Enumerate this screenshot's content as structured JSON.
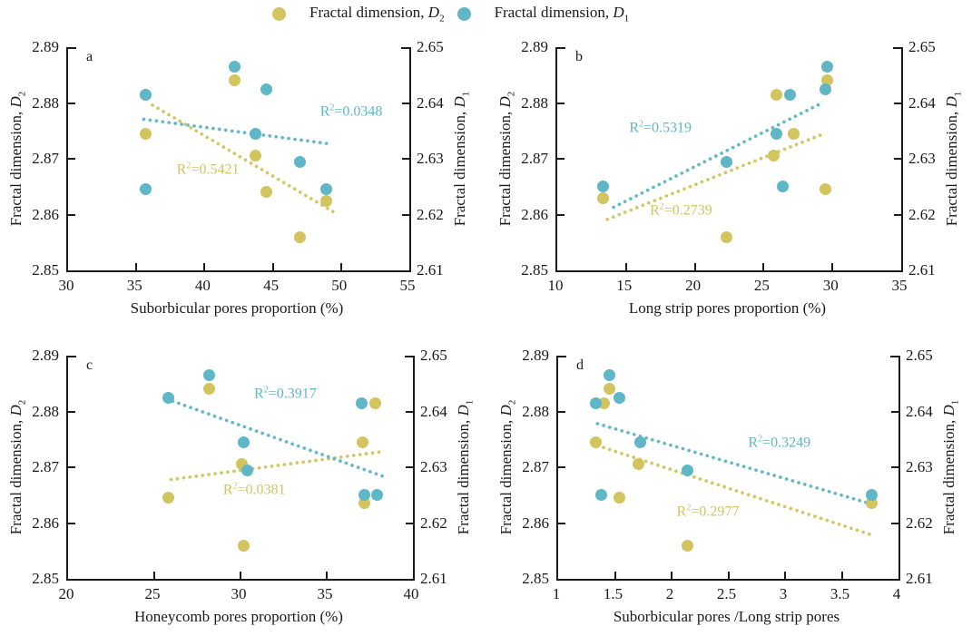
{
  "colors": {
    "d2": "#d2c45f",
    "d1": "#5fb6c6",
    "axis": "#1a1a1a"
  },
  "legend": {
    "items": [
      {
        "id": "d2",
        "prefix": "Fractal dimension, ",
        "symbol": "D",
        "subscript": "2",
        "color": "#d2c45f"
      },
      {
        "id": "d1",
        "prefix": "Fractal dimension, ",
        "symbol": "D",
        "subscript": "1",
        "color": "#5fb6c6"
      }
    ]
  },
  "chart_data": [
    {
      "panel": "a",
      "type": "scatter",
      "xlabel": "Suborbicular pores proportion (%)",
      "xlim": [
        30,
        55
      ],
      "xticks": [
        "30",
        "35",
        "40",
        "45",
        "50",
        "55"
      ],
      "ylim_left": [
        2.85,
        2.89
      ],
      "yticks_left": [
        "2.85",
        "2.86",
        "2.87",
        "2.88",
        "2.89"
      ],
      "ylim_right": [
        2.61,
        2.65
      ],
      "yticks_right": [
        "2.61",
        "2.62",
        "2.63",
        "2.64",
        "2.65"
      ],
      "ylabel_left": {
        "prefix": "Fractal dimension, ",
        "symbol": "D",
        "subscript": "2"
      },
      "ylabel_right": {
        "prefix": "Fractal dimension, ",
        "symbol": "D",
        "subscript": "1"
      },
      "series": [
        {
          "name": "Fractal dimension, D2",
          "axis": "left",
          "color": "#d2c45f",
          "points": [
            [
              35.7,
              2.8815
            ],
            [
              35.7,
              2.8745
            ],
            [
              42.2,
              2.884
            ],
            [
              43.7,
              2.8705
            ],
            [
              44.5,
              2.864
            ],
            [
              47.0,
              2.856
            ],
            [
              48.9,
              2.8625
            ]
          ],
          "trend": {
            "start": [
              36.0,
              2.88
            ],
            "end": [
              49.5,
              2.8605
            ]
          },
          "r2": {
            "prefix": "R",
            "sup": "2",
            "eq": "=",
            "value": "0.5421"
          },
          "r2_pos": [
            0.41,
            0.55
          ]
        },
        {
          "name": "Fractal dimension, D1",
          "axis": "right",
          "color": "#5fb6c6",
          "points": [
            [
              35.7,
              2.6415
            ],
            [
              35.7,
              2.6245
            ],
            [
              42.2,
              2.6465
            ],
            [
              44.5,
              2.6425
            ],
            [
              43.7,
              2.6345
            ],
            [
              47.0,
              2.6295
            ],
            [
              48.9,
              2.6245
            ]
          ],
          "trend": {
            "start": [
              35.3,
              2.6372
            ],
            "end": [
              49.2,
              2.6327
            ]
          },
          "r2": {
            "prefix": "R",
            "sup": "2",
            "eq": "=",
            "value": "0.0348"
          },
          "r2_pos": [
            0.83,
            0.29
          ]
        }
      ]
    },
    {
      "panel": "b",
      "type": "scatter",
      "xlabel": "Long strip pores proportion (%)",
      "xlim": [
        10,
        35
      ],
      "xticks": [
        "10",
        "15",
        "20",
        "25",
        "30",
        "35"
      ],
      "ylim_left": [
        2.85,
        2.89
      ],
      "yticks_left": [
        "2.85",
        "2.86",
        "2.87",
        "2.88",
        "2.89"
      ],
      "ylim_right": [
        2.61,
        2.65
      ],
      "yticks_right": [
        "2.61",
        "2.62",
        "2.63",
        "2.64",
        "2.65"
      ],
      "ylabel_left": {
        "prefix": "Fractal dimension, ",
        "symbol": "D",
        "subscript": "2"
      },
      "ylabel_right": {
        "prefix": "Fractal dimension, ",
        "symbol": "D",
        "subscript": "1"
      },
      "series": [
        {
          "name": "Fractal dimension, D2",
          "axis": "left",
          "color": "#d2c45f",
          "points": [
            [
              13.3,
              2.863
            ],
            [
              22.3,
              2.856
            ],
            [
              25.9,
              2.8815
            ],
            [
              25.7,
              2.8705
            ],
            [
              27.2,
              2.8745
            ],
            [
              29.6,
              2.884
            ],
            [
              29.5,
              2.8645
            ]
          ],
          "trend": {
            "start": [
              13.4,
              2.859
            ],
            "end": [
              29.3,
              2.8745
            ]
          },
          "r2": {
            "prefix": "R",
            "sup": "2",
            "eq": "=",
            "value": "0.2739"
          },
          "r2_pos": [
            0.36,
            0.73
          ]
        },
        {
          "name": "Fractal dimension, D1",
          "axis": "right",
          "color": "#5fb6c6",
          "points": [
            [
              13.3,
              2.625
            ],
            [
              22.3,
              2.6295
            ],
            [
              26.9,
              2.6415
            ],
            [
              25.9,
              2.6345
            ],
            [
              26.4,
              2.625
            ],
            [
              29.6,
              2.6465
            ],
            [
              29.5,
              2.6425
            ]
          ],
          "trend": {
            "start": [
              13.9,
              2.621
            ],
            "end": [
              29.3,
              2.64
            ]
          },
          "r2": {
            "prefix": "R",
            "sup": "2",
            "eq": "=",
            "value": "0.5319"
          },
          "r2_pos": [
            0.3,
            0.36
          ]
        }
      ]
    },
    {
      "panel": "c",
      "type": "scatter",
      "xlabel": "Honeycomb pores proportion (%)",
      "xlim": [
        20,
        40
      ],
      "xticks": [
        "20",
        "25",
        "30",
        "35",
        "40"
      ],
      "ylim_left": [
        2.85,
        2.89
      ],
      "yticks_left": [
        "2.85",
        "2.86",
        "2.87",
        "2.88",
        "2.89"
      ],
      "ylim_right": [
        2.61,
        2.65
      ],
      "yticks_right": [
        "2.61",
        "2.62",
        "2.63",
        "2.64",
        "2.65"
      ],
      "ylabel_left": {
        "prefix": "Fractal dimension, ",
        "symbol": "D",
        "subscript": "2"
      },
      "ylabel_right": {
        "prefix": "Fractal dimension, ",
        "symbol": "D",
        "subscript": "1"
      },
      "series": [
        {
          "name": "Fractal dimension, D2",
          "axis": "left",
          "color": "#d2c45f",
          "points": [
            [
              25.8,
              2.8645
            ],
            [
              28.2,
              2.884
            ],
            [
              30.1,
              2.8705
            ],
            [
              30.2,
              2.856
            ],
            [
              37.1,
              2.8745
            ],
            [
              37.2,
              2.8635
            ],
            [
              37.8,
              2.8815
            ]
          ],
          "trend": {
            "start": [
              25.8,
              2.8677
            ],
            "end": [
              38.3,
              2.8728
            ]
          },
          "r2": {
            "prefix": "R",
            "sup": "2",
            "eq": "=",
            "value": "0.0381"
          },
          "r2_pos": [
            0.54,
            0.6
          ]
        },
        {
          "name": "Fractal dimension, D1",
          "axis": "right",
          "color": "#5fb6c6",
          "points": [
            [
              25.8,
              2.6425
            ],
            [
              28.2,
              2.6465
            ],
            [
              30.2,
              2.6345
            ],
            [
              30.4,
              2.6295
            ],
            [
              37.0,
              2.6415
            ],
            [
              37.2,
              2.625
            ],
            [
              37.9,
              2.625
            ]
          ],
          "trend": {
            "start": [
              25.9,
              2.642
            ],
            "end": [
              38.4,
              2.6282
            ]
          },
          "r2": {
            "prefix": "R",
            "sup": "2",
            "eq": "=",
            "value": "0.3917"
          },
          "r2_pos": [
            0.63,
            0.17
          ]
        }
      ]
    },
    {
      "panel": "d",
      "type": "scatter",
      "xlabel": "Suborbicular pores /Long strip pores",
      "xlim": [
        1,
        4
      ],
      "xticks": [
        "1",
        "1.5",
        "2",
        "2.5",
        "3",
        "3.5",
        "4"
      ],
      "ylim_left": [
        2.85,
        2.89
      ],
      "yticks_left": [
        "2.85",
        "2.86",
        "2.87",
        "2.88",
        "2.89"
      ],
      "ylim_right": [
        2.61,
        2.65
      ],
      "yticks_right": [
        "2.61",
        "2.62",
        "2.63",
        "2.64",
        "2.65"
      ],
      "ylabel_left": {
        "prefix": "Fractal dimension, ",
        "symbol": "D",
        "subscript": "2"
      },
      "ylabel_right": {
        "prefix": "Fractal dimension, ",
        "symbol": "D",
        "subscript": "1"
      },
      "series": [
        {
          "name": "Fractal dimension, D2",
          "axis": "left",
          "color": "#d2c45f",
          "points": [
            [
              1.33,
              2.8745
            ],
            [
              1.4,
              2.8815
            ],
            [
              1.45,
              2.884
            ],
            [
              1.54,
              2.8645
            ],
            [
              1.71,
              2.8705
            ],
            [
              2.14,
              2.856
            ],
            [
              3.76,
              2.8635
            ]
          ],
          "trend": {
            "start": [
              1.32,
              2.874
            ],
            "end": [
              3.78,
              2.8577
            ]
          },
          "r2": {
            "prefix": "R",
            "sup": "2",
            "eq": "=",
            "value": "0.2977"
          },
          "r2_pos": [
            0.44,
            0.7
          ]
        },
        {
          "name": "Fractal dimension, D1",
          "axis": "right",
          "color": "#5fb6c6",
          "points": [
            [
              1.33,
              2.6415
            ],
            [
              1.38,
              2.625
            ],
            [
              1.45,
              2.6465
            ],
            [
              1.54,
              2.6425
            ],
            [
              1.72,
              2.6345
            ],
            [
              2.14,
              2.6295
            ],
            [
              3.76,
              2.625
            ]
          ],
          "trend": {
            "start": [
              1.32,
              2.638
            ],
            "end": [
              3.72,
              2.6237
            ]
          },
          "r2": {
            "prefix": "R",
            "sup": "2",
            "eq": "=",
            "value": "0.3249"
          },
          "r2_pos": [
            0.65,
            0.39
          ]
        }
      ]
    }
  ]
}
